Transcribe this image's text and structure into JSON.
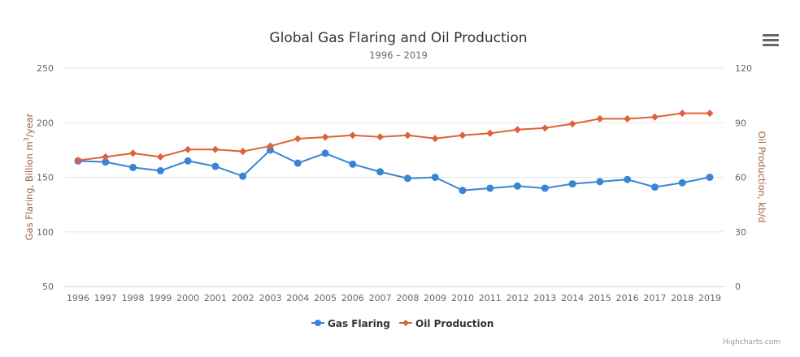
{
  "chart_data": {
    "type": "line",
    "title": "Global Gas Flaring and Oil Production",
    "subtitle": "1996 – 2019",
    "categories": [
      "1996",
      "1997",
      "1998",
      "1999",
      "2000",
      "2001",
      "2002",
      "2003",
      "2004",
      "2005",
      "2006",
      "2007",
      "2008",
      "2009",
      "2010",
      "2011",
      "2012",
      "2013",
      "2014",
      "2015",
      "2016",
      "2017",
      "2018",
      "2019"
    ],
    "y_left": {
      "label_pre": "Gas Flaring, Billion m",
      "label_sup": "3",
      "label_post": "/year",
      "ylim": [
        50,
        250
      ],
      "ticks": [
        "50",
        "100",
        "150",
        "200",
        "250"
      ]
    },
    "y_right": {
      "label": "Oil Production, kb/d",
      "ylim": [
        0,
        120
      ],
      "ticks": [
        "0",
        "30",
        "60",
        "90",
        "120"
      ]
    },
    "grid": true,
    "legend_position": "bottom",
    "series": [
      {
        "name": "Gas Flaring",
        "axis": "left",
        "color": "#3a84d6",
        "marker": "circle",
        "values": [
          165,
          164,
          159,
          156,
          165,
          160,
          151,
          175,
          163,
          172,
          162,
          155,
          149,
          150,
          138,
          140,
          142,
          140,
          144,
          146,
          148,
          141,
          145,
          150
        ]
      },
      {
        "name": "Oil Production",
        "axis": "right",
        "color": "#e0603a",
        "marker": "diamond",
        "values": [
          69.3,
          71.2,
          73.2,
          71.2,
          75.3,
          75.3,
          74.2,
          77.2,
          81.2,
          82.1,
          83.1,
          82.2,
          83.1,
          81.3,
          83.1,
          84.2,
          86.2,
          87.1,
          89.4,
          92.2,
          92.2,
          93.1,
          95.2,
          95.2
        ]
      }
    ]
  },
  "credits": "Highcharts.com",
  "menu_icon": "hamburger-menu-icon"
}
